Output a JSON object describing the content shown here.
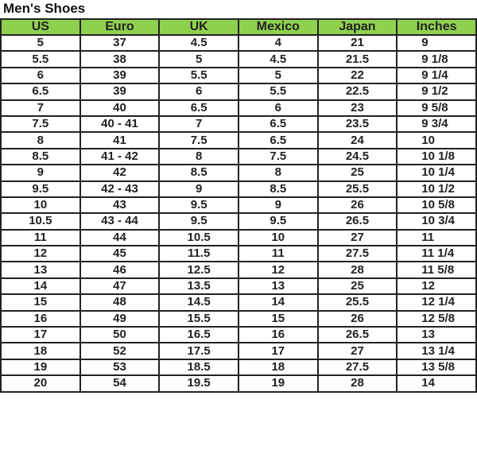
{
  "title": "Men's Shoes",
  "header_color": "#8fd14f",
  "columns": [
    "US",
    "Euro",
    "UK",
    "Mexico",
    "Japan",
    "Inches"
  ],
  "rows": [
    [
      "5",
      "37",
      "4.5",
      "4",
      "21",
      "9"
    ],
    [
      "5.5",
      "38",
      "5",
      "4.5",
      "21.5",
      "9 1/8"
    ],
    [
      "6",
      "39",
      "5.5",
      "5",
      "22",
      "9 1/4"
    ],
    [
      "6.5",
      "39",
      "6",
      "5.5",
      "22.5",
      "9 1/2"
    ],
    [
      "7",
      "40",
      "6.5",
      "6",
      "23",
      "9 5/8"
    ],
    [
      "7.5",
      "40 - 41",
      "7",
      "6.5",
      "23.5",
      "9 3/4"
    ],
    [
      "8",
      "41",
      "7.5",
      "6.5",
      "24",
      "10"
    ],
    [
      "8.5",
      "41 - 42",
      "8",
      "7.5",
      "24.5",
      "10 1/8"
    ],
    [
      "9",
      "42",
      "8.5",
      "8",
      "25",
      "10 1/4"
    ],
    [
      "9.5",
      "42 - 43",
      "9",
      "8.5",
      "25.5",
      "10 1/2"
    ],
    [
      "10",
      "43",
      "9.5",
      "9",
      "26",
      "10 5/8"
    ],
    [
      "10.5",
      "43 - 44",
      "9.5",
      "9.5",
      "26.5",
      "10 3/4"
    ],
    [
      "11",
      "44",
      "10.5",
      "10",
      "27",
      "11"
    ],
    [
      "12",
      "45",
      "11.5",
      "11",
      "27.5",
      "11 1/4"
    ],
    [
      "13",
      "46",
      "12.5",
      "12",
      "28",
      "11 5/8"
    ],
    [
      "14",
      "47",
      "13.5",
      "13",
      "25",
      "12"
    ],
    [
      "15",
      "48",
      "14.5",
      "14",
      "25.5",
      "12 1/4"
    ],
    [
      "16",
      "49",
      "15.5",
      "15",
      "26",
      "12 5/8"
    ],
    [
      "17",
      "50",
      "16.5",
      "16",
      "26.5",
      "13"
    ],
    [
      "18",
      "52",
      "17.5",
      "17",
      "27",
      "13 1/4"
    ],
    [
      "19",
      "53",
      "18.5",
      "18",
      "27.5",
      "13 5/8"
    ],
    [
      "20",
      "54",
      "19.5",
      "19",
      "28",
      "14"
    ]
  ]
}
